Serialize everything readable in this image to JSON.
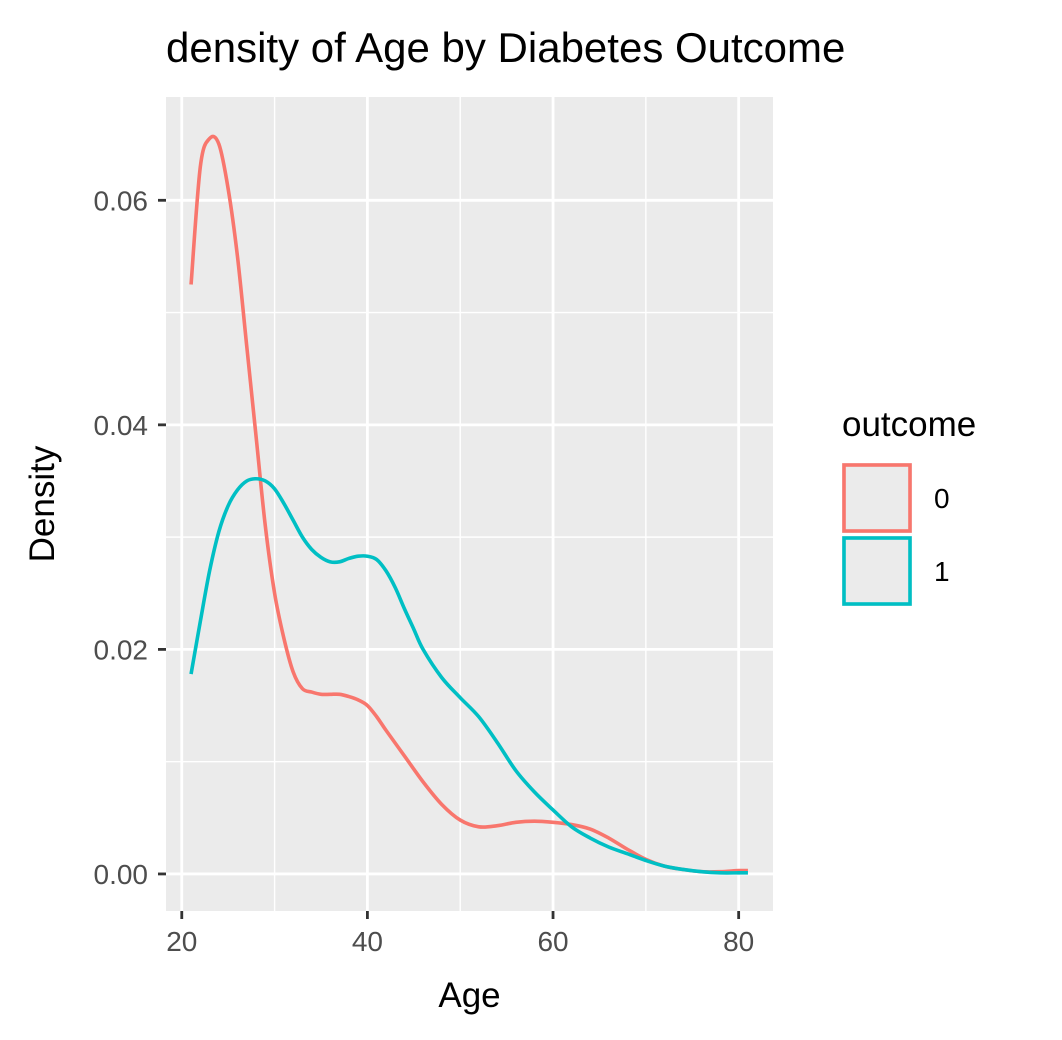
{
  "chart_data": {
    "type": "line",
    "title": "density of Age by Diabetes Outcome",
    "xlabel": "Age",
    "ylabel": "Density",
    "xlim": [
      18.3,
      83.7
    ],
    "ylim": [
      -0.0033,
      0.0692
    ],
    "x_ticks": [
      20,
      40,
      60,
      80
    ],
    "x_tick_labels": [
      "20",
      "40",
      "60",
      "80"
    ],
    "y_ticks": [
      0.0,
      0.02,
      0.04,
      0.06
    ],
    "y_tick_labels": [
      "0.00",
      "0.02",
      "0.04",
      "0.06"
    ],
    "grid": true,
    "panel_background": "#ebebeb",
    "grid_color": "#ffffff",
    "legend": {
      "title": "outcome",
      "position": "right",
      "entries": [
        {
          "label": "0",
          "color": "#f8766d"
        },
        {
          "label": "1",
          "color": "#00bfc4"
        }
      ]
    },
    "series": [
      {
        "name": "0",
        "color": "#f8766d",
        "x": [
          21,
          22,
          23,
          24,
          25,
          26,
          27,
          28,
          29,
          30,
          31,
          32,
          33,
          34,
          35,
          36,
          37,
          38,
          39,
          40,
          41,
          42,
          44,
          46,
          48,
          50,
          52,
          54,
          56,
          58,
          60,
          62,
          64,
          66,
          68,
          70,
          72,
          74,
          76,
          78,
          80,
          81
        ],
        "y": [
          0.0525,
          0.063,
          0.0655,
          0.065,
          0.061,
          0.055,
          0.047,
          0.039,
          0.031,
          0.025,
          0.021,
          0.018,
          0.0165,
          0.0162,
          0.016,
          0.016,
          0.016,
          0.0158,
          0.0155,
          0.015,
          0.014,
          0.0128,
          0.0105,
          0.0082,
          0.0062,
          0.0048,
          0.0042,
          0.0043,
          0.0046,
          0.0047,
          0.0046,
          0.0044,
          0.004,
          0.0032,
          0.0022,
          0.0013,
          0.0007,
          0.0004,
          0.0002,
          0.0002,
          0.0003,
          0.0003
        ]
      },
      {
        "name": "1",
        "color": "#00bfc4",
        "x": [
          21,
          22,
          23,
          24,
          25,
          26,
          27,
          28,
          29,
          30,
          31,
          32,
          33,
          34,
          35,
          36,
          37,
          38,
          39,
          40,
          41,
          42,
          43,
          44,
          45,
          46,
          48,
          50,
          52,
          54,
          56,
          58,
          60,
          62,
          64,
          66,
          68,
          70,
          72,
          74,
          76,
          78,
          80,
          81
        ],
        "y": [
          0.0178,
          0.0225,
          0.027,
          0.0305,
          0.0328,
          0.0342,
          0.035,
          0.0352,
          0.035,
          0.0343,
          0.033,
          0.0315,
          0.03,
          0.0289,
          0.0282,
          0.0278,
          0.0278,
          0.0281,
          0.0283,
          0.0283,
          0.028,
          0.027,
          0.0255,
          0.0236,
          0.0218,
          0.02,
          0.0175,
          0.0157,
          0.014,
          0.0117,
          0.0092,
          0.0073,
          0.0057,
          0.0042,
          0.0032,
          0.0024,
          0.0018,
          0.0012,
          0.0007,
          0.0004,
          0.0002,
          0.0001,
          0.0001,
          0.0001
        ]
      }
    ]
  }
}
